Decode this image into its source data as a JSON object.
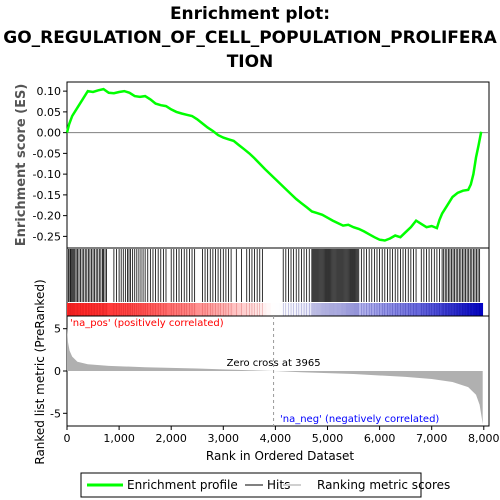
{
  "title_lines": [
    "Enrichment plot:",
    "GO_REGULATION_OF_CELL_POPULATION_PROLIFERA",
    "TION"
  ],
  "colors": {
    "es_curve": "#00ff00",
    "hits": "#000000",
    "zero_line": "#808080",
    "metric_fill": "#b0b0b0",
    "pos_label": "#ff0000",
    "neg_label": "#0000ff",
    "frame": "#000000"
  },
  "chart_data": {
    "type": "line",
    "es_panel": {
      "ylabel": "Enrichment score (ES)",
      "yticks": [
        "0.10",
        "0.05",
        "0.00",
        "-0.05",
        "-0.10",
        "-0.15",
        "-0.20",
        "-0.25"
      ],
      "ytick_values": [
        0.1,
        0.05,
        0.0,
        -0.05,
        -0.1,
        -0.15,
        -0.2,
        -0.25
      ],
      "ylim": [
        -0.278,
        0.122
      ],
      "xlim": [
        0,
        8100
      ],
      "series": [
        {
          "points": [
            [
              0,
              0.0
            ],
            [
              40,
              0.02
            ],
            [
              100,
              0.04
            ],
            [
              200,
              0.06
            ],
            [
              300,
              0.08
            ],
            [
              400,
              0.1
            ],
            [
              500,
              0.098
            ],
            [
              600,
              0.102
            ],
            [
              700,
              0.105
            ],
            [
              800,
              0.096
            ],
            [
              900,
              0.095
            ],
            [
              1000,
              0.098
            ],
            [
              1100,
              0.1
            ],
            [
              1200,
              0.096
            ],
            [
              1300,
              0.088
            ],
            [
              1400,
              0.086
            ],
            [
              1500,
              0.088
            ],
            [
              1600,
              0.08
            ],
            [
              1700,
              0.07
            ],
            [
              1800,
              0.066
            ],
            [
              1900,
              0.064
            ],
            [
              2000,
              0.056
            ],
            [
              2100,
              0.05
            ],
            [
              2200,
              0.046
            ],
            [
              2300,
              0.043
            ],
            [
              2400,
              0.04
            ],
            [
              2500,
              0.032
            ],
            [
              2600,
              0.022
            ],
            [
              2700,
              0.012
            ],
            [
              2800,
              0.004
            ],
            [
              2900,
              -0.006
            ],
            [
              3000,
              -0.012
            ],
            [
              3100,
              -0.016
            ],
            [
              3200,
              -0.02
            ],
            [
              3300,
              -0.03
            ],
            [
              3400,
              -0.04
            ],
            [
              3500,
              -0.05
            ],
            [
              3600,
              -0.062
            ],
            [
              3700,
              -0.075
            ],
            [
              3800,
              -0.088
            ],
            [
              3900,
              -0.1
            ],
            [
              4000,
              -0.112
            ],
            [
              4100,
              -0.124
            ],
            [
              4200,
              -0.136
            ],
            [
              4300,
              -0.148
            ],
            [
              4400,
              -0.16
            ],
            [
              4500,
              -0.17
            ],
            [
              4600,
              -0.18
            ],
            [
              4700,
              -0.19
            ],
            [
              4800,
              -0.194
            ],
            [
              4900,
              -0.198
            ],
            [
              5000,
              -0.205
            ],
            [
              5100,
              -0.212
            ],
            [
              5200,
              -0.218
            ],
            [
              5300,
              -0.224
            ],
            [
              5400,
              -0.222
            ],
            [
              5500,
              -0.228
            ],
            [
              5600,
              -0.232
            ],
            [
              5700,
              -0.238
            ],
            [
              5800,
              -0.245
            ],
            [
              5900,
              -0.252
            ],
            [
              6000,
              -0.258
            ],
            [
              6100,
              -0.26
            ],
            [
              6200,
              -0.255
            ],
            [
              6300,
              -0.248
            ],
            [
              6400,
              -0.252
            ],
            [
              6500,
              -0.24
            ],
            [
              6600,
              -0.228
            ],
            [
              6700,
              -0.212
            ],
            [
              6800,
              -0.22
            ],
            [
              6900,
              -0.228
            ],
            [
              7000,
              -0.225
            ],
            [
              7100,
              -0.23
            ],
            [
              7150,
              -0.21
            ],
            [
              7200,
              -0.195
            ],
            [
              7300,
              -0.175
            ],
            [
              7400,
              -0.155
            ],
            [
              7500,
              -0.145
            ],
            [
              7600,
              -0.14
            ],
            [
              7700,
              -0.138
            ],
            [
              7750,
              -0.125
            ],
            [
              7800,
              -0.1
            ],
            [
              7850,
              -0.06
            ],
            [
              7900,
              -0.03
            ],
            [
              7950,
              0.002
            ]
          ]
        }
      ]
    },
    "hits_panel": {
      "hit_positions": [
        30,
        55,
        70,
        90,
        110,
        130,
        150,
        175,
        200,
        230,
        260,
        290,
        320,
        350,
        380,
        410,
        440,
        470,
        500,
        530,
        560,
        590,
        620,
        650,
        680,
        700,
        730,
        760,
        900,
        950,
        1000,
        1040,
        1080,
        1120,
        1160,
        1190,
        1220,
        1260,
        1300,
        1340,
        1380,
        1420,
        1460,
        1500,
        1550,
        1600,
        1650,
        1700,
        1750,
        1800,
        1850,
        1900,
        2000,
        2050,
        2100,
        2150,
        2200,
        2250,
        2300,
        2350,
        2400,
        2450,
        2600,
        2650,
        2700,
        2750,
        2800,
        2850,
        2900,
        2950,
        3000,
        3050,
        3100,
        3150,
        3250,
        3350,
        3450,
        3500,
        3550,
        3600,
        3650,
        3700,
        3750,
        4150,
        4200,
        4250,
        4300,
        4350,
        4400,
        4450,
        4500,
        4550,
        4600,
        4650,
        4700,
        4720,
        4740,
        4760,
        4780,
        4800,
        4820,
        4840,
        4860,
        4880,
        4900,
        4920,
        4940,
        4960,
        4980,
        5000,
        5020,
        5040,
        5060,
        5080,
        5100,
        5120,
        5140,
        5160,
        5180,
        5200,
        5220,
        5240,
        5260,
        5280,
        5300,
        5320,
        5340,
        5360,
        5380,
        5400,
        5420,
        5440,
        5460,
        5480,
        5500,
        5520,
        5540,
        5560,
        5580,
        5600,
        5650,
        5700,
        5750,
        5800,
        5850,
        5900,
        5950,
        6000,
        6050,
        6100,
        6150,
        6200,
        6250,
        6300,
        6350,
        6400,
        6450,
        6500,
        6550,
        6600,
        6650,
        6700,
        6800,
        6850,
        6900,
        6950,
        7000,
        7050,
        7100,
        7150,
        7200,
        7230,
        7260,
        7290,
        7320,
        7350,
        7380,
        7410,
        7440,
        7470,
        7500,
        7530,
        7560,
        7590,
        7620,
        7650,
        7680,
        7710,
        7740,
        7770,
        7800,
        7830,
        7860,
        7890,
        7920
      ]
    },
    "metric_panel": {
      "ylabel": "Ranked list metric (PreRanked)",
      "yticks": [
        "5",
        "0",
        "-5"
      ],
      "ytick_values": [
        5,
        0,
        -5
      ],
      "ylim": [
        -6.5,
        6.5
      ],
      "xlabel": "Rank in Ordered Dataset",
      "xticks": [
        "0",
        "1,000",
        "2,000",
        "3,000",
        "4,000",
        "5,000",
        "6,000",
        "7,000",
        "8,000"
      ],
      "xtick_values": [
        0,
        1000,
        2000,
        3000,
        4000,
        5000,
        6000,
        7000,
        8000
      ],
      "xlim": [
        0,
        8100
      ],
      "zero_cross": 3965,
      "zero_cross_label": "Zero cross at 3965",
      "pos_label": "'na_pos' (positively correlated)",
      "neg_label": "'na_neg' (negatively correlated)",
      "curve": [
        [
          0,
          5.2
        ],
        [
          20,
          3.4
        ],
        [
          50,
          2.4
        ],
        [
          100,
          1.7
        ],
        [
          200,
          1.1
        ],
        [
          400,
          0.8
        ],
        [
          800,
          0.6
        ],
        [
          1500,
          0.45
        ],
        [
          2500,
          0.3
        ],
        [
          3500,
          0.1
        ],
        [
          3965,
          0.0
        ],
        [
          4500,
          -0.15
        ],
        [
          5500,
          -0.35
        ],
        [
          6500,
          -0.7
        ],
        [
          7000,
          -0.95
        ],
        [
          7400,
          -1.3
        ],
        [
          7700,
          -1.9
        ],
        [
          7850,
          -2.8
        ],
        [
          7920,
          -4.0
        ],
        [
          7960,
          -5.5
        ],
        [
          7980,
          -6.3
        ]
      ]
    },
    "total_genes": 7980
  },
  "legend": {
    "items": [
      {
        "label": "Enrichment profile",
        "type": "line",
        "color": "#00ff00"
      },
      {
        "label": "Hits",
        "type": "line",
        "color": "#808080"
      },
      {
        "label": "Ranking metric scores",
        "type": "line",
        "color": "#d0d0d0"
      }
    ]
  }
}
